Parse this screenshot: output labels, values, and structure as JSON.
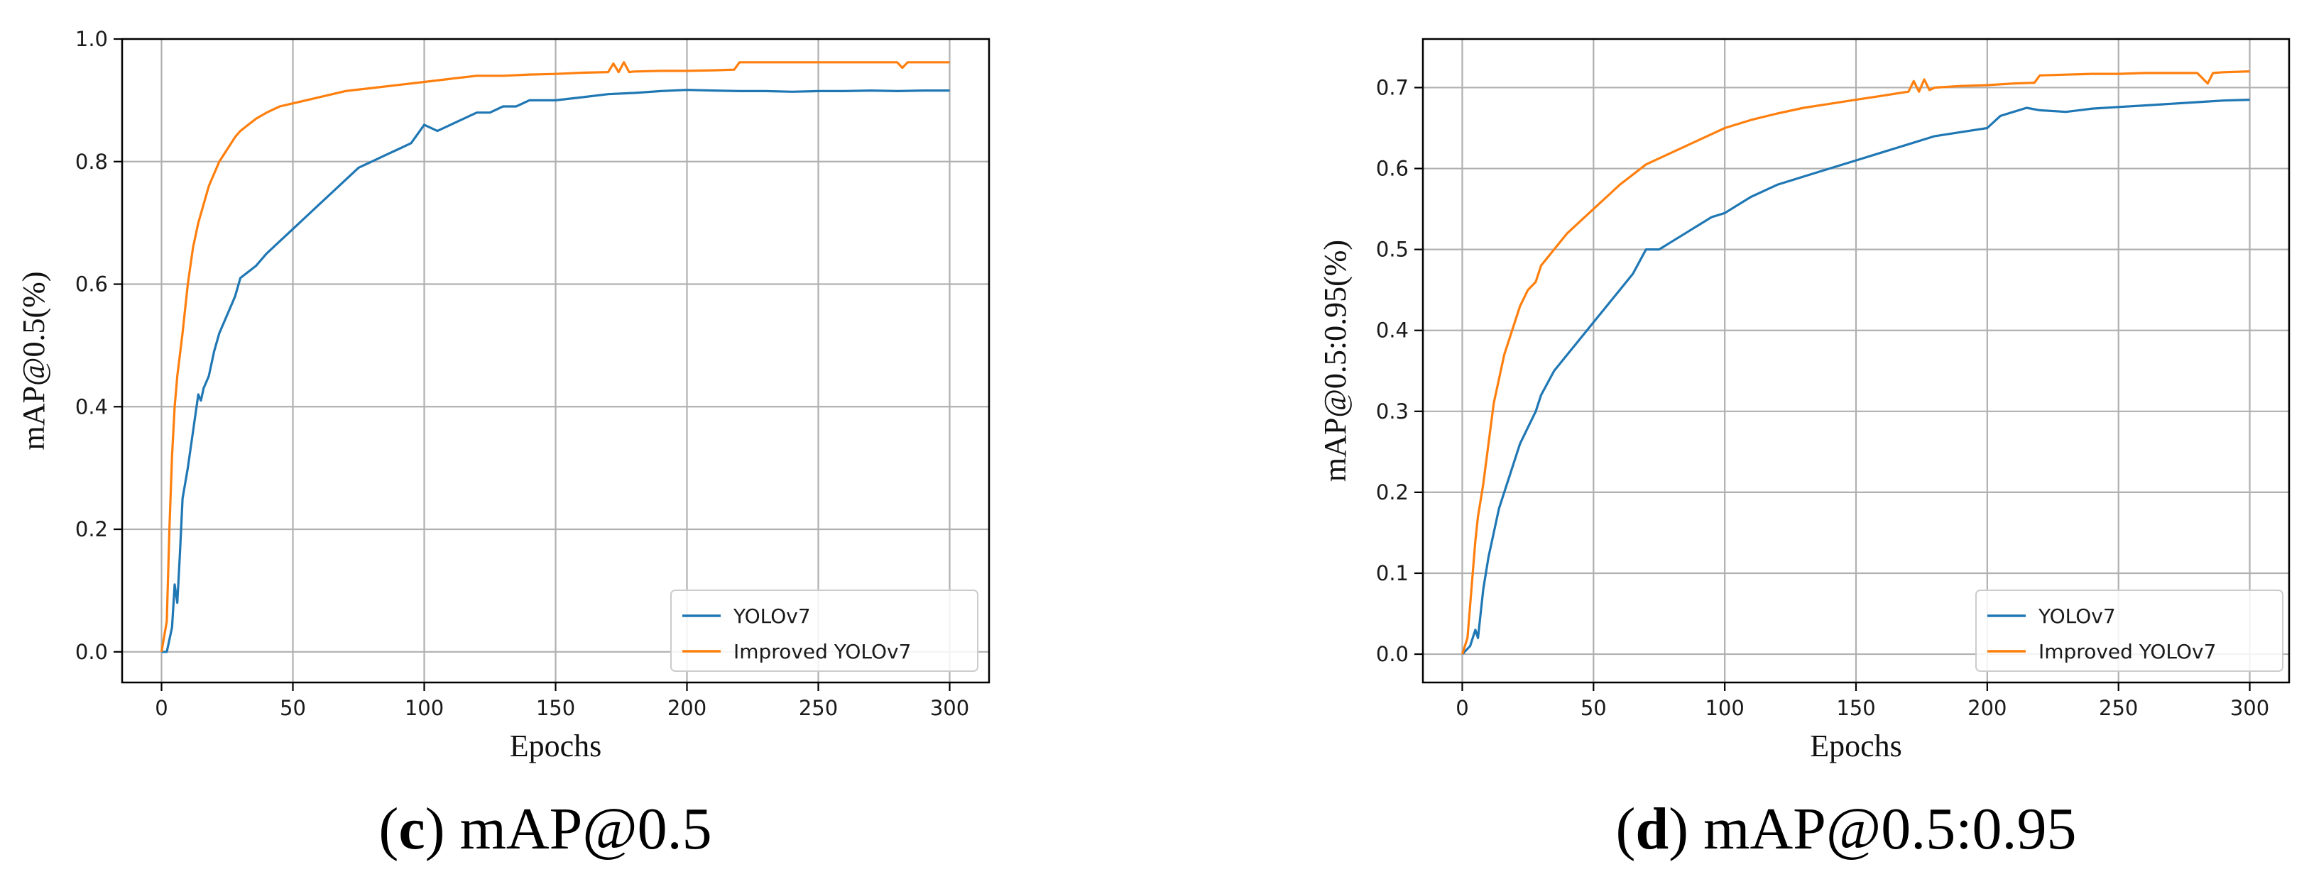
{
  "chart_data": [
    {
      "type": "line",
      "title": "",
      "xlabel": "Epochs",
      "ylabel": "mAP@0.5(%)",
      "xlim": [
        -15,
        315
      ],
      "ylim": [
        -0.05,
        1.0
      ],
      "xticks": [
        0,
        50,
        100,
        150,
        200,
        250,
        300
      ],
      "xtick_labels": [
        "0",
        "50",
        "100",
        "150",
        "200",
        "250",
        "300"
      ],
      "yticks": [
        0.0,
        0.2,
        0.4,
        0.6,
        0.8,
        1.0
      ],
      "ytick_labels": [
        "0.0",
        "0.2",
        "0.4",
        "0.6",
        "0.8",
        "1.0"
      ],
      "grid": true,
      "legend_position": "bottom-right",
      "series": [
        {
          "name": "YOLOv7",
          "color": "#1f77b4",
          "x": [
            0,
            2,
            4,
            5,
            6,
            7,
            8,
            10,
            12,
            14,
            15,
            16,
            18,
            20,
            22,
            25,
            28,
            30,
            33,
            36,
            40,
            45,
            50,
            55,
            60,
            65,
            70,
            75,
            80,
            85,
            90,
            95,
            100,
            105,
            110,
            115,
            120,
            125,
            130,
            135,
            140,
            145,
            150,
            160,
            170,
            180,
            190,
            200,
            210,
            220,
            230,
            240,
            250,
            260,
            270,
            280,
            290,
            300
          ],
          "values": [
            0.0,
            0.0,
            0.04,
            0.11,
            0.08,
            0.16,
            0.25,
            0.3,
            0.36,
            0.42,
            0.41,
            0.43,
            0.45,
            0.49,
            0.52,
            0.55,
            0.58,
            0.61,
            0.62,
            0.63,
            0.65,
            0.67,
            0.69,
            0.71,
            0.73,
            0.75,
            0.77,
            0.79,
            0.8,
            0.81,
            0.82,
            0.83,
            0.86,
            0.85,
            0.86,
            0.87,
            0.88,
            0.88,
            0.89,
            0.89,
            0.9,
            0.9,
            0.9,
            0.905,
            0.91,
            0.912,
            0.915,
            0.917,
            0.916,
            0.915,
            0.915,
            0.914,
            0.915,
            0.915,
            0.916,
            0.915,
            0.916,
            0.916
          ]
        },
        {
          "name": "Improved YOLOv7",
          "color": "#ff7f0e",
          "x": [
            0,
            2,
            3,
            4,
            5,
            6,
            8,
            10,
            12,
            14,
            16,
            18,
            20,
            22,
            25,
            28,
            30,
            33,
            36,
            40,
            45,
            50,
            55,
            60,
            70,
            80,
            90,
            100,
            110,
            120,
            130,
            140,
            150,
            160,
            170,
            172,
            174,
            176,
            178,
            180,
            190,
            200,
            210,
            218,
            220,
            230,
            240,
            250,
            260,
            270,
            280,
            282,
            284,
            290,
            300
          ],
          "values": [
            0.0,
            0.05,
            0.2,
            0.32,
            0.4,
            0.45,
            0.52,
            0.6,
            0.66,
            0.7,
            0.73,
            0.76,
            0.78,
            0.8,
            0.82,
            0.84,
            0.85,
            0.86,
            0.87,
            0.88,
            0.89,
            0.895,
            0.9,
            0.905,
            0.915,
            0.92,
            0.925,
            0.93,
            0.935,
            0.94,
            0.94,
            0.942,
            0.943,
            0.945,
            0.946,
            0.96,
            0.946,
            0.962,
            0.946,
            0.947,
            0.948,
            0.948,
            0.949,
            0.95,
            0.962,
            0.962,
            0.962,
            0.962,
            0.962,
            0.962,
            0.962,
            0.953,
            0.962,
            0.962,
            0.962
          ]
        }
      ]
    },
    {
      "type": "line",
      "title": "",
      "xlabel": "Epochs",
      "ylabel": "mAP@0.5:0.95(%)",
      "xlim": [
        -15,
        315
      ],
      "ylim": [
        -0.035,
        0.76
      ],
      "xticks": [
        0,
        50,
        100,
        150,
        200,
        250,
        300
      ],
      "xtick_labels": [
        "0",
        "50",
        "100",
        "150",
        "200",
        "250",
        "300"
      ],
      "yticks": [
        0.0,
        0.1,
        0.2,
        0.3,
        0.4,
        0.5,
        0.6,
        0.7
      ],
      "ytick_labels": [
        "0.0",
        "0.1",
        "0.2",
        "0.3",
        "0.4",
        "0.5",
        "0.6",
        "0.7"
      ],
      "grid": true,
      "legend_position": "bottom-right",
      "series": [
        {
          "name": "YOLOv7",
          "color": "#1f77b4",
          "x": [
            0,
            3,
            5,
            6,
            7,
            8,
            10,
            12,
            14,
            16,
            18,
            20,
            22,
            25,
            28,
            30,
            35,
            40,
            45,
            50,
            55,
            60,
            65,
            70,
            75,
            80,
            85,
            90,
            95,
            100,
            105,
            110,
            120,
            130,
            140,
            150,
            160,
            170,
            180,
            190,
            200,
            205,
            210,
            215,
            220,
            230,
            240,
            250,
            260,
            270,
            280,
            290,
            300
          ],
          "values": [
            0.0,
            0.01,
            0.03,
            0.02,
            0.05,
            0.08,
            0.12,
            0.15,
            0.18,
            0.2,
            0.22,
            0.24,
            0.26,
            0.28,
            0.3,
            0.32,
            0.35,
            0.37,
            0.39,
            0.41,
            0.43,
            0.45,
            0.47,
            0.5,
            0.5,
            0.51,
            0.52,
            0.53,
            0.54,
            0.545,
            0.555,
            0.565,
            0.58,
            0.59,
            0.6,
            0.61,
            0.62,
            0.63,
            0.64,
            0.645,
            0.65,
            0.665,
            0.67,
            0.675,
            0.672,
            0.67,
            0.674,
            0.676,
            0.678,
            0.68,
            0.682,
            0.684,
            0.685
          ]
        },
        {
          "name": "Improved YOLOv7",
          "color": "#ff7f0e",
          "x": [
            0,
            2,
            3,
            4,
            5,
            6,
            8,
            10,
            12,
            14,
            16,
            18,
            20,
            22,
            25,
            28,
            30,
            35,
            40,
            45,
            50,
            55,
            60,
            70,
            80,
            90,
            100,
            110,
            120,
            130,
            140,
            150,
            160,
            170,
            172,
            174,
            176,
            178,
            180,
            190,
            200,
            210,
            218,
            220,
            230,
            240,
            250,
            260,
            270,
            280,
            284,
            286,
            290,
            300
          ],
          "values": [
            0.0,
            0.02,
            0.06,
            0.1,
            0.14,
            0.17,
            0.21,
            0.26,
            0.31,
            0.34,
            0.37,
            0.39,
            0.41,
            0.43,
            0.45,
            0.46,
            0.48,
            0.5,
            0.52,
            0.535,
            0.55,
            0.565,
            0.58,
            0.605,
            0.62,
            0.635,
            0.65,
            0.66,
            0.668,
            0.675,
            0.68,
            0.685,
            0.69,
            0.695,
            0.708,
            0.695,
            0.71,
            0.697,
            0.7,
            0.702,
            0.703,
            0.705,
            0.706,
            0.715,
            0.716,
            0.717,
            0.717,
            0.718,
            0.718,
            0.718,
            0.705,
            0.718,
            0.719,
            0.72
          ]
        }
      ]
    }
  ],
  "captions": [
    {
      "letter": "c",
      "text": "mAP@0.5"
    },
    {
      "letter": "d",
      "text": "mAP@0.5:0.95"
    }
  ]
}
